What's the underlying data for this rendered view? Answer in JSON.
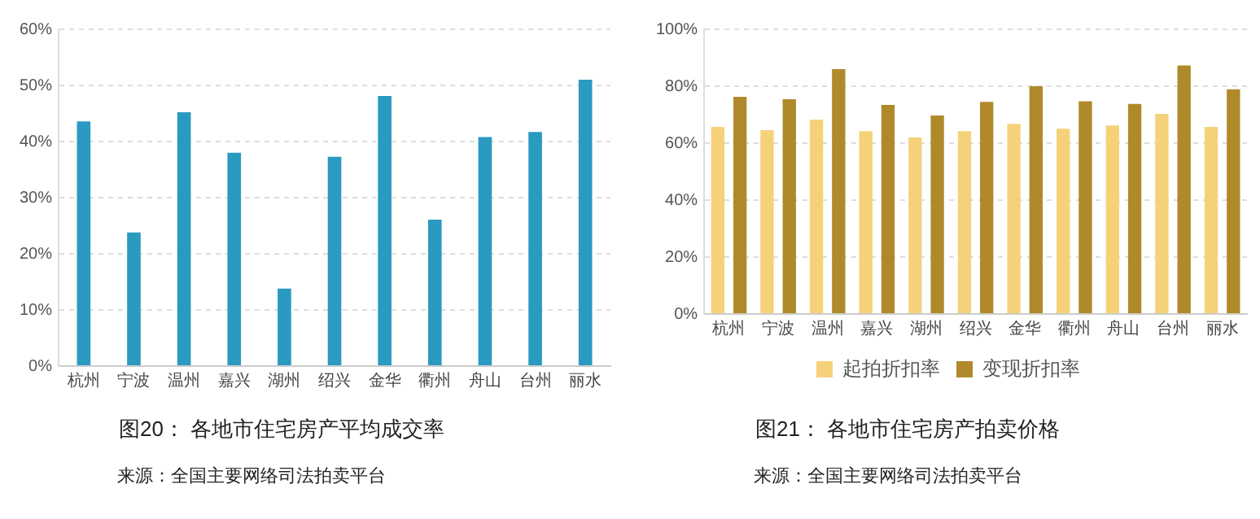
{
  "chart_data": [
    {
      "type": "bar",
      "title": "图20：  各地市住宅房产平均成交率",
      "annotations": [
        "来源：全国主要网络司法拍卖平台"
      ],
      "categories": [
        "杭州",
        "宁波",
        "温州",
        "嘉兴",
        "湖州",
        "绍兴",
        "金华",
        "衢州",
        "舟山",
        "台州",
        "丽水"
      ],
      "series": [
        {
          "color": "#2a9ac0",
          "values": [
            43.6,
            23.8,
            45.2,
            38,
            13.8,
            37.3,
            48.1,
            26.1,
            40.8,
            41.7,
            51
          ]
        }
      ],
      "ylim": [
        0,
        60
      ],
      "yticks": [
        {
          "value": 0,
          "label": "0%"
        },
        {
          "value": 10,
          "label": "10%"
        },
        {
          "value": 20,
          "label": "20%"
        },
        {
          "value": 30,
          "label": "30%"
        },
        {
          "value": 40,
          "label": "40%"
        },
        {
          "value": 50,
          "label": "50%"
        },
        {
          "value": 60,
          "label": "60%"
        }
      ],
      "grid": "y"
    },
    {
      "type": "bar",
      "title": "图21：  各地市住宅房产拍卖价格",
      "annotations": [
        "来源：全国主要网络司法拍卖平台"
      ],
      "categories": [
        "杭州",
        "宁波",
        "温州",
        "嘉兴",
        "湖州",
        "绍兴",
        "金华",
        "衢州",
        "舟山",
        "台州",
        "丽水"
      ],
      "series": [
        {
          "name": "起拍折扣率",
          "color": "#f5d27a",
          "values": [
            65.7,
            64.6,
            68.3,
            64.2,
            62,
            64.2,
            66.8,
            65.1,
            66.2,
            70.3,
            65.7
          ]
        },
        {
          "name": "变现折扣率",
          "color": "#b08a2a",
          "values": [
            76.3,
            75.4,
            86,
            73.4,
            69.7,
            74.5,
            80,
            74.7,
            73.8,
            87.3,
            78.9
          ]
        }
      ],
      "ylim": [
        0,
        100
      ],
      "yticks": [
        {
          "value": 0,
          "label": "0%"
        },
        {
          "value": 20,
          "label": "20%"
        },
        {
          "value": 40,
          "label": "40%"
        },
        {
          "value": 60,
          "label": "60%"
        },
        {
          "value": 80,
          "label": "80%"
        },
        {
          "value": 100,
          "label": "100%"
        }
      ],
      "grid": "y",
      "legend": "bottom"
    }
  ]
}
